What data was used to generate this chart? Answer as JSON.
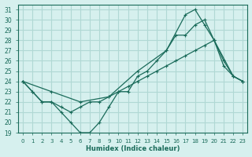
{
  "xlabel": "Humidex (Indice chaleur)",
  "bg_color": "#d6f0ee",
  "grid_color": "#b0d8d4",
  "line_color": "#1a6b5a",
  "xlim": [
    -0.5,
    23.5
  ],
  "ylim": [
    19,
    31.5
  ],
  "yticks": [
    19,
    20,
    21,
    22,
    23,
    24,
    25,
    26,
    27,
    28,
    29,
    30,
    31
  ],
  "xticks": [
    0,
    1,
    2,
    3,
    4,
    5,
    6,
    7,
    8,
    9,
    10,
    11,
    12,
    13,
    14,
    15,
    16,
    17,
    18,
    19,
    20,
    21,
    22,
    23
  ],
  "line1_x": [
    0,
    1,
    2,
    3,
    4,
    5,
    6,
    7,
    8,
    9,
    10,
    11,
    12,
    13,
    14,
    15,
    16,
    17,
    18,
    19,
    20,
    21,
    22,
    23
  ],
  "line1_y": [
    24,
    23,
    22,
    22,
    21,
    20,
    19,
    19,
    20,
    21.5,
    23,
    23,
    24.5,
    25,
    26,
    27,
    28.5,
    28.5,
    29.5,
    30,
    28,
    25.5,
    24.5,
    24
  ],
  "line2_x": [
    0,
    1,
    2,
    3,
    4,
    5,
    6,
    7,
    8,
    9,
    10,
    11,
    12,
    13,
    14,
    15,
    16,
    17,
    18,
    19,
    20,
    21,
    22,
    23
  ],
  "line2_y": [
    24,
    23,
    22,
    22,
    21.5,
    21,
    21.5,
    22,
    22,
    22.5,
    23,
    23.5,
    24,
    24.5,
    25,
    25.5,
    26,
    26.5,
    27,
    27.5,
    28,
    26,
    24.5,
    24
  ],
  "line3_x": [
    0,
    3,
    6,
    9,
    12,
    15,
    17,
    18,
    19,
    20,
    22,
    23
  ],
  "line3_y": [
    24,
    23,
    22,
    22.5,
    25,
    27,
    30.5,
    31,
    29.5,
    28,
    24.5,
    24
  ]
}
